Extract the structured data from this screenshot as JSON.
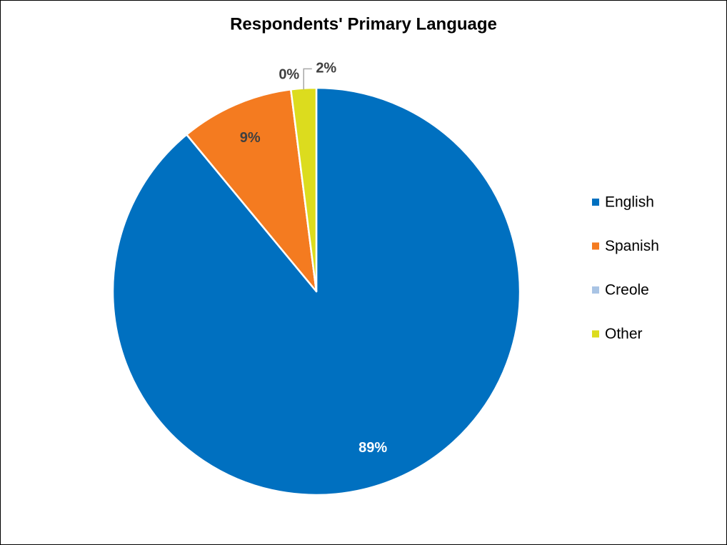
{
  "chart_data": {
    "type": "pie",
    "title": "Respondents' Primary Language",
    "categories": [
      "English",
      "Spanish",
      "Creole",
      "Other"
    ],
    "values": [
      89,
      9,
      0,
      2
    ],
    "value_labels": [
      "89%",
      "9%",
      "0%",
      "2%"
    ],
    "colors": [
      "#0070c0",
      "#f47b20",
      "#a9c4e4",
      "#dcdc1e"
    ],
    "legend": "right"
  }
}
